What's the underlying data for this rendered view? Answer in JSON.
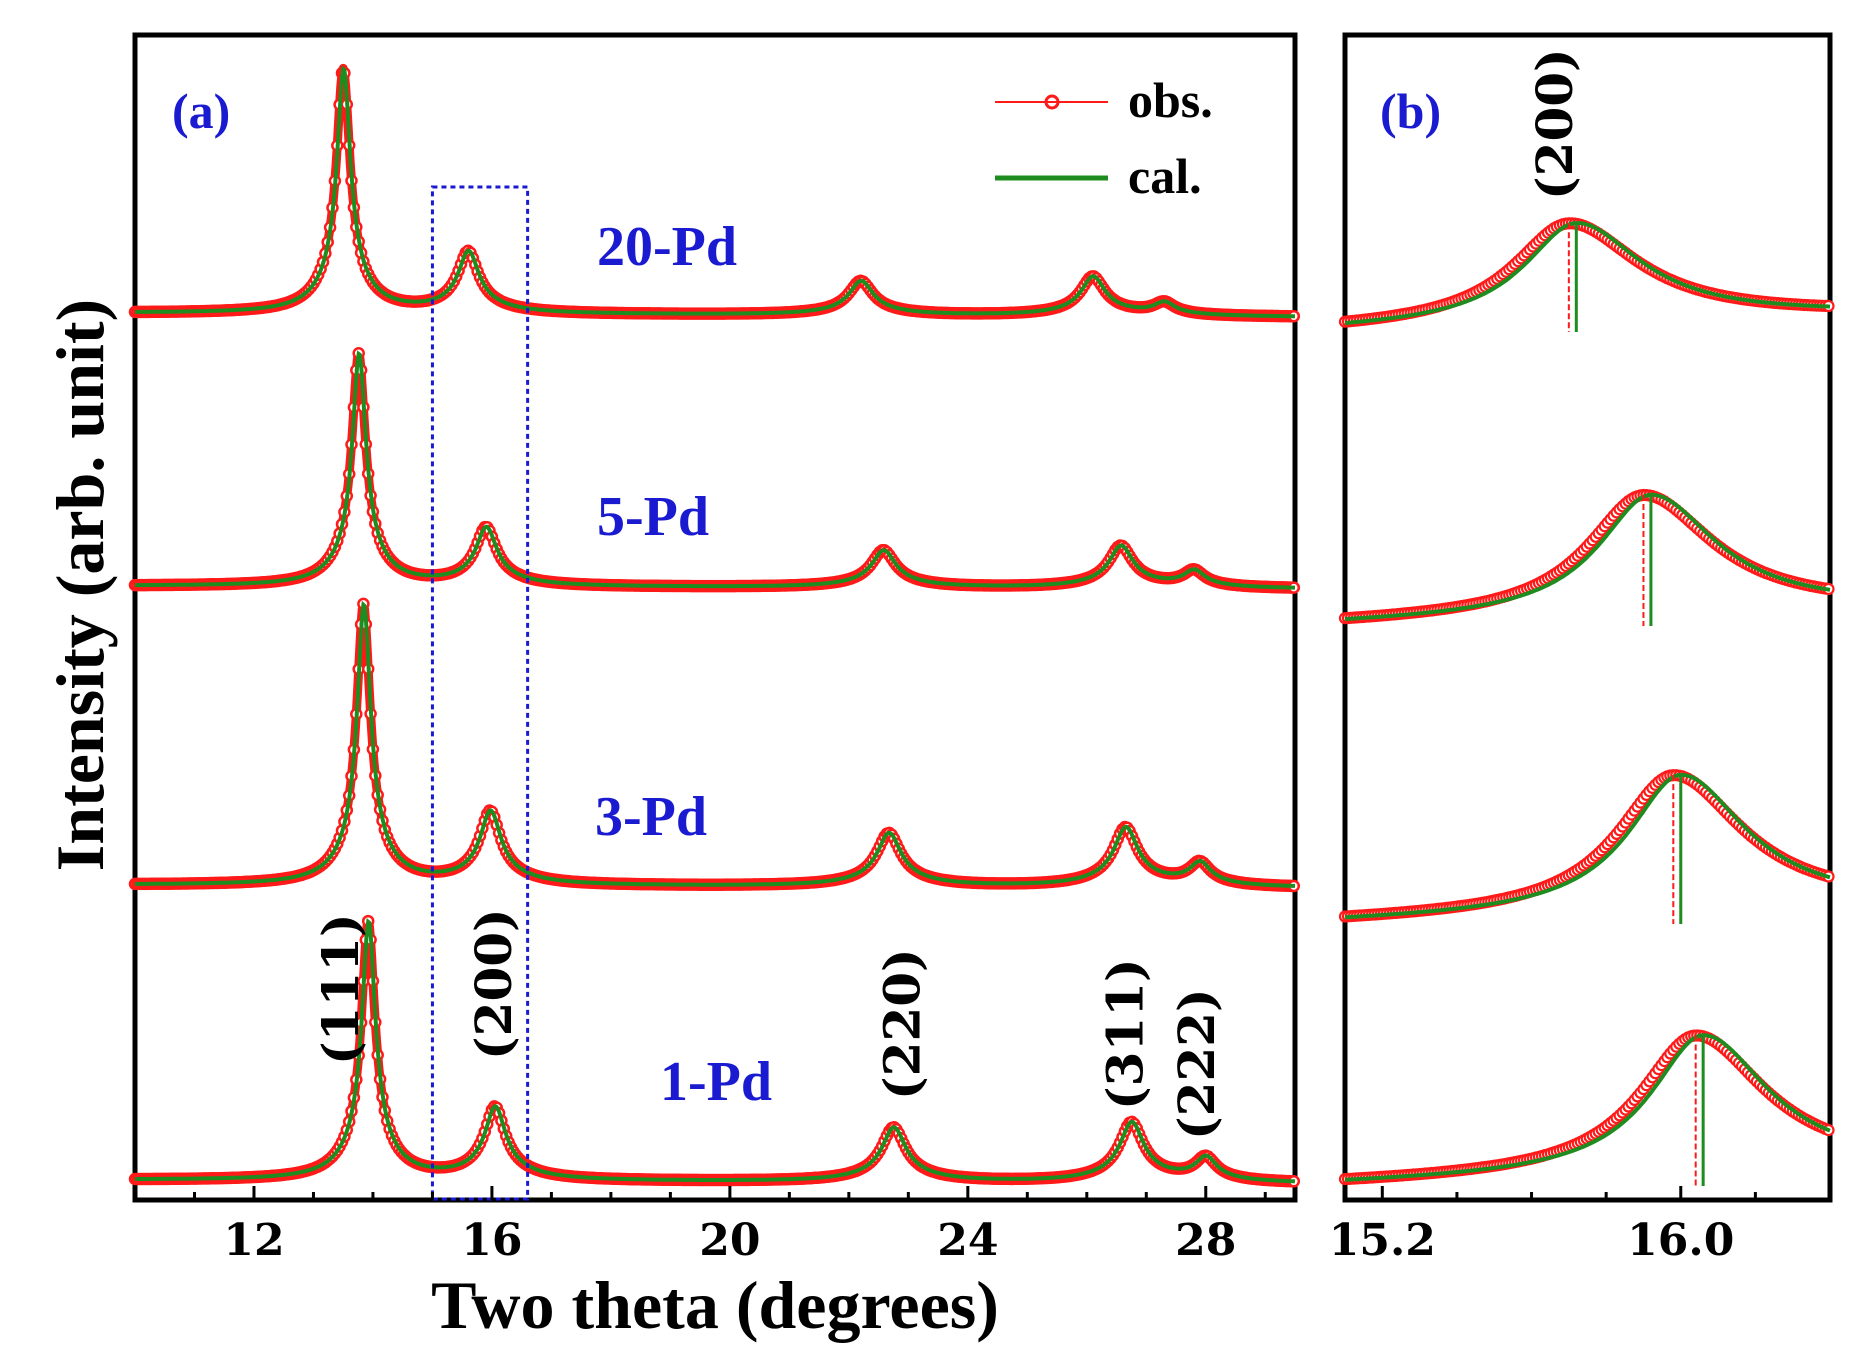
{
  "colors": {
    "obs": "#ff1a1a",
    "cal": "#1e8c1e",
    "panel_label": "#1a1ad0",
    "sample_label": "#1a1ad0",
    "highlight_box": "#1a1ad0"
  },
  "legend": {
    "obs_label": "obs.",
    "cal_label": "cal."
  },
  "chart_data": [
    {
      "panel": "(a)",
      "type": "line",
      "xlabel": "Two theta (degrees)",
      "ylabel": "Intensity (arb. unit)",
      "xlim": [
        10,
        29.5
      ],
      "xticks": [
        12,
        16,
        20,
        24,
        28
      ],
      "xtick_labels": [
        "12",
        "16",
        "20",
        "24",
        "28"
      ],
      "highlight_box_x": [
        15.0,
        16.6
      ],
      "hkl_labels": [
        {
          "label": "(111)",
          "x": 13.9
        },
        {
          "label": "(200)",
          "x": 16.05
        },
        {
          "label": "(220)",
          "x": 22.75
        },
        {
          "label": "(311)",
          "x": 26.75
        },
        {
          "label": "(222)",
          "x": 27.95
        }
      ],
      "series": [
        {
          "name": "1-Pd",
          "peaks_2theta": [
            13.92,
            16.05,
            22.75,
            26.75,
            28.0
          ],
          "relative_heights": [
            1.0,
            0.28,
            0.21,
            0.23,
            0.09
          ]
        },
        {
          "name": "3-Pd",
          "peaks_2theta": [
            13.84,
            15.97,
            22.67,
            26.65,
            27.9
          ],
          "relative_heights": [
            1.0,
            0.26,
            0.19,
            0.21,
            0.08
          ]
        },
        {
          "name": "5-Pd",
          "peaks_2theta": [
            13.76,
            15.9,
            22.58,
            26.57,
            27.8
          ],
          "relative_heights": [
            1.0,
            0.25,
            0.16,
            0.18,
            0.07
          ]
        },
        {
          "name": "20-Pd",
          "peaks_2theta": [
            13.5,
            15.6,
            22.2,
            26.1,
            27.3
          ],
          "relative_heights": [
            1.0,
            0.25,
            0.14,
            0.16,
            0.05
          ]
        }
      ]
    },
    {
      "panel": "(b)",
      "type": "line",
      "xlabel": "",
      "xlim": [
        15.1,
        16.4
      ],
      "xticks": [
        15.2,
        16.0
      ],
      "xtick_labels": [
        "15.2",
        "16.0"
      ],
      "peak_label": "(200)",
      "series": [
        {
          "name": "20-Pd",
          "obs_peak": 15.7,
          "cal_peak": 15.72
        },
        {
          "name": "5-Pd",
          "obs_peak": 15.9,
          "cal_peak": 15.92
        },
        {
          "name": "3-Pd",
          "obs_peak": 15.98,
          "cal_peak": 16.0
        },
        {
          "name": "1-Pd",
          "obs_peak": 16.04,
          "cal_peak": 16.06
        }
      ]
    }
  ]
}
